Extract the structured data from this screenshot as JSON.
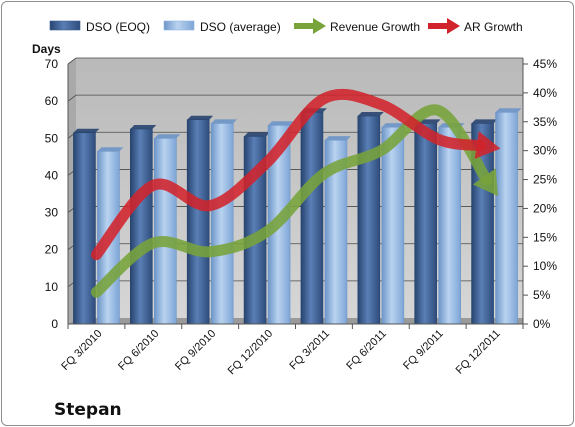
{
  "chart_data": {
    "type": "bar",
    "company": "Stepan",
    "ylabel": "Days",
    "categories": [
      "FQ 3/2010",
      "FQ 6/2010",
      "FQ 9/2010",
      "FQ 12/2010",
      "FQ 3/2011",
      "FQ 6/2011",
      "FQ 9/2011",
      "FQ 12/2011"
    ],
    "ylim": [
      0,
      70
    ],
    "y_ticks": [
      "0",
      "10",
      "20",
      "30",
      "40",
      "50",
      "60",
      "70"
    ],
    "y2lim": [
      0,
      45
    ],
    "y2_ticks": [
      "0%",
      "5%",
      "10%",
      "15%",
      "20%",
      "25%",
      "30%",
      "35%",
      "40%",
      "45%"
    ],
    "series": [
      {
        "name": "DSO (EOQ)",
        "type": "bar",
        "axis": "left",
        "color": "#3c5f93",
        "values": [
          51.5,
          52.5,
          55,
          50.5,
          57,
          56,
          54,
          54
        ]
      },
      {
        "name": "DSO (average)",
        "type": "bar",
        "axis": "left",
        "color": "#8fb4df",
        "values": [
          46.5,
          50,
          54,
          53.5,
          49.5,
          53,
          53,
          57
        ]
      },
      {
        "name": "Revenue Growth",
        "type": "line",
        "axis": "right",
        "color": "#77a33a",
        "values": [
          5.5,
          14,
          12.5,
          16,
          26,
          30,
          37,
          23
        ]
      },
      {
        "name": "AR Growth",
        "type": "line",
        "axis": "right",
        "color": "#d1232b",
        "values": [
          12,
          24,
          20.5,
          28,
          39,
          38,
          32,
          30.5
        ]
      }
    ],
    "legend_position": "top",
    "grid": true
  }
}
